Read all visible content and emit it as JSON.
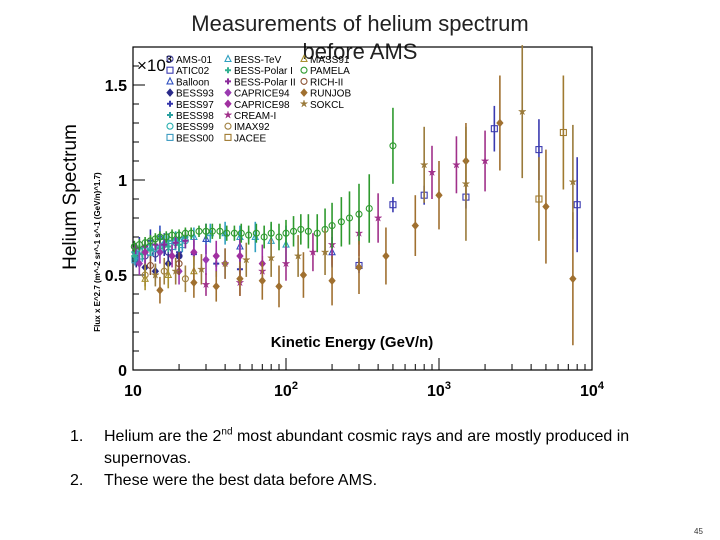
{
  "slide": {
    "title_line1": "Measurements of helium spectrum",
    "title_line2": "before AMS",
    "side_label": "Helium Spectrum",
    "bullets": [
      {
        "num": "1.",
        "pre": "Helium are the 2",
        "sup": "nd",
        "post": " most abundant cosmic rays and are mostly produced in supernovas."
      },
      {
        "num": "2.",
        "pre": "These were the best data before AMS.",
        "sup": "",
        "post": ""
      }
    ],
    "page_number": "45"
  },
  "chart_data": {
    "type": "scatter",
    "x_scale": "log",
    "xlim": [
      10,
      10000
    ],
    "ylim": [
      0,
      1700
    ],
    "x_ticks": [
      {
        "value": 10,
        "base": "10",
        "exp": ""
      },
      {
        "value": 100,
        "base": "10",
        "exp": "2"
      },
      {
        "value": 1000,
        "base": "10",
        "exp": "3"
      },
      {
        "value": 10000,
        "base": "10",
        "exp": "4"
      }
    ],
    "y_ticks": [
      {
        "value": 0,
        "label": "0"
      },
      {
        "value": 500,
        "label": "0.5"
      },
      {
        "value": 1000,
        "label": "1"
      },
      {
        "value": 1500,
        "label": "1.5"
      }
    ],
    "y_multiplier": {
      "base": "×10",
      "exp": "3"
    },
    "ylabel": "Flux x E^2.7 (m^-2 sr^-1 s^-1 (GeV/n)^1.7)",
    "xlabel": "Kinetic Energy (GeV/n)",
    "grid": false,
    "legend_position": "top-left",
    "series": [
      {
        "name": "AMS-01",
        "color": "#3a3a9a",
        "marker": "circle",
        "points": [
          [
            10.5,
            610,
            40
          ],
          [
            12,
            600,
            40
          ],
          [
            14,
            610,
            40
          ],
          [
            17,
            620,
            40
          ],
          [
            20,
            600,
            40
          ]
        ]
      },
      {
        "name": "ATIC02",
        "color": "#3a3ab0",
        "marker": "square",
        "points": [
          [
            300,
            550,
            40
          ],
          [
            500,
            870,
            40
          ],
          [
            800,
            920,
            50
          ],
          [
            1500,
            910,
            60
          ],
          [
            2300,
            1270,
            120
          ],
          [
            4500,
            1160,
            160
          ],
          [
            8000,
            870,
            250
          ]
        ]
      },
      {
        "name": "Balloon",
        "color": "#3050c0",
        "marker": "triangle",
        "points": [
          [
            15,
            700,
            60
          ],
          [
            30,
            690,
            80
          ],
          [
            50,
            650,
            80
          ],
          [
            200,
            620,
            80
          ]
        ]
      },
      {
        "name": "BESS93",
        "color": "#2a2a8a",
        "marker": "diamond",
        "points": [
          [
            10.5,
            580,
            40
          ],
          [
            12,
            540,
            40
          ],
          [
            14,
            520,
            40
          ],
          [
            17,
            560,
            50
          ],
          [
            20,
            600,
            50
          ]
        ]
      },
      {
        "name": "BESS97",
        "color": "#3333aa",
        "marker": "cross",
        "points": [
          [
            11,
            640,
            60
          ],
          [
            13,
            680,
            60
          ],
          [
            16,
            660,
            60
          ],
          [
            20,
            620,
            60
          ],
          [
            25,
            610,
            70
          ],
          [
            35,
            560,
            70
          ],
          [
            50,
            530,
            80
          ]
        ]
      },
      {
        "name": "BESS98",
        "color": "#2aa0a0",
        "marker": "cross",
        "points": [
          [
            10.2,
            620,
            30
          ],
          [
            11,
            640,
            30
          ],
          [
            12,
            650,
            30
          ],
          [
            13,
            660,
            30
          ],
          [
            15,
            690,
            30
          ],
          [
            17,
            680,
            40
          ],
          [
            19,
            690,
            40
          ],
          [
            22,
            700,
            40
          ]
        ]
      },
      {
        "name": "BESS99",
        "color": "#2ab0b0",
        "marker": "circle",
        "points": [
          [
            10.5,
            600,
            30
          ],
          [
            12,
            630,
            30
          ],
          [
            14,
            650,
            30
          ],
          [
            16,
            660,
            30
          ],
          [
            19,
            670,
            40
          ],
          [
            22,
            680,
            40
          ]
        ]
      },
      {
        "name": "BESS00",
        "color": "#3a9ac0",
        "marker": "square",
        "points": [
          [
            10.3,
            580,
            30
          ],
          [
            11.5,
            600,
            30
          ],
          [
            13,
            620,
            30
          ],
          [
            15,
            640,
            30
          ],
          [
            18,
            650,
            40
          ],
          [
            21,
            660,
            40
          ]
        ]
      },
      {
        "name": "BESS-TeV",
        "color": "#30a0c0",
        "marker": "triangle",
        "points": [
          [
            10.5,
            620,
            40
          ],
          [
            13,
            640,
            40
          ],
          [
            16,
            670,
            40
          ],
          [
            20,
            690,
            40
          ],
          [
            25,
            700,
            50
          ],
          [
            32,
            720,
            50
          ],
          [
            40,
            720,
            60
          ],
          [
            50,
            700,
            60
          ],
          [
            63,
            700,
            80
          ],
          [
            80,
            680,
            90
          ],
          [
            100,
            660,
            100
          ]
        ]
      },
      {
        "name": "BESS-Polar I",
        "color": "#30b090",
        "marker": "cross",
        "points": [
          [
            10.2,
            600,
            30
          ],
          [
            11.5,
            610,
            30
          ],
          [
            13,
            630,
            30
          ],
          [
            15,
            640,
            30
          ],
          [
            17,
            650,
            30
          ],
          [
            20,
            660,
            40
          ]
        ]
      },
      {
        "name": "BESS-Polar II",
        "color": "#8a2a9a",
        "marker": "cross",
        "points": [
          [
            10.4,
            640,
            30
          ],
          [
            12,
            650,
            30
          ],
          [
            14,
            660,
            30
          ],
          [
            16,
            660,
            30
          ],
          [
            19,
            670,
            30
          ],
          [
            22,
            680,
            40
          ]
        ]
      },
      {
        "name": "CAPRICE94",
        "color": "#9a3ab0",
        "marker": "diamond",
        "points": [
          [
            11,
            560,
            60
          ],
          [
            15,
            620,
            60
          ],
          [
            20,
            520,
            70
          ],
          [
            30,
            580,
            80
          ],
          [
            40,
            560,
            80
          ]
        ]
      },
      {
        "name": "CAPRICE98",
        "color": "#a030a0",
        "marker": "diamond",
        "points": [
          [
            12,
            620,
            60
          ],
          [
            18,
            600,
            60
          ],
          [
            25,
            620,
            70
          ],
          [
            35,
            600,
            80
          ],
          [
            50,
            600,
            90
          ],
          [
            70,
            560,
            100
          ]
        ]
      },
      {
        "name": "CREAM-I",
        "color": "#a0308a",
        "marker": "star",
        "points": [
          [
            30,
            450,
            60
          ],
          [
            50,
            460,
            70
          ],
          [
            70,
            520,
            80
          ],
          [
            100,
            560,
            90
          ],
          [
            150,
            620,
            100
          ],
          [
            200,
            660,
            110
          ],
          [
            300,
            720,
            120
          ],
          [
            400,
            800,
            130
          ],
          [
            900,
            1040,
            140
          ],
          [
            1300,
            1080,
            150
          ],
          [
            2000,
            1100,
            160
          ]
        ]
      },
      {
        "name": "IMAX92",
        "color": "#a08040",
        "marker": "circle",
        "points": [
          [
            12,
            500,
            60
          ],
          [
            16,
            520,
            70
          ],
          [
            22,
            480,
            70
          ]
        ]
      },
      {
        "name": "JACEE",
        "color": "#a07a30",
        "marker": "square",
        "points": [
          [
            4500,
            900,
            220
          ],
          [
            6500,
            1250,
            300
          ]
        ]
      },
      {
        "name": "MASS91",
        "color": "#a89030",
        "marker": "triangle",
        "points": [
          [
            12,
            480,
            60
          ],
          [
            17,
            500,
            70
          ],
          [
            25,
            520,
            80
          ]
        ]
      },
      {
        "name": "PAMELA",
        "color": "#2e9a2e",
        "marker": "circle",
        "points": [
          [
            10.2,
            650,
            30
          ],
          [
            11,
            660,
            30
          ],
          [
            12,
            670,
            30
          ],
          [
            13,
            680,
            30
          ],
          [
            14,
            690,
            30
          ],
          [
            15,
            700,
            30
          ],
          [
            16.5,
            700,
            30
          ],
          [
            18,
            710,
            30
          ],
          [
            20,
            710,
            30
          ],
          [
            22,
            720,
            30
          ],
          [
            24,
            720,
            30
          ],
          [
            27,
            730,
            30
          ],
          [
            30,
            730,
            40
          ],
          [
            33,
            730,
            40
          ],
          [
            37,
            730,
            40
          ],
          [
            41,
            720,
            40
          ],
          [
            46,
            720,
            40
          ],
          [
            51,
            720,
            50
          ],
          [
            57,
            710,
            50
          ],
          [
            64,
            720,
            50
          ],
          [
            72,
            700,
            60
          ],
          [
            80,
            720,
            60
          ],
          [
            90,
            700,
            70
          ],
          [
            100,
            720,
            70
          ],
          [
            112,
            730,
            80
          ],
          [
            125,
            740,
            80
          ],
          [
            140,
            730,
            90
          ],
          [
            160,
            720,
            100
          ],
          [
            180,
            740,
            110
          ],
          [
            200,
            760,
            120
          ],
          [
            230,
            780,
            130
          ],
          [
            260,
            800,
            140
          ],
          [
            300,
            820,
            160
          ],
          [
            350,
            850,
            180
          ],
          [
            500,
            1180,
            200
          ]
        ]
      },
      {
        "name": "RICH-II",
        "color": "#8a5030",
        "marker": "circle",
        "points": [
          [
            13,
            550,
            50
          ],
          [
            20,
            560,
            60
          ]
        ]
      },
      {
        "name": "RUNJOB",
        "color": "#a07030",
        "marker": "diamond",
        "points": [
          [
            15,
            420,
            70
          ],
          [
            25,
            460,
            80
          ],
          [
            35,
            440,
            80
          ],
          [
            50,
            480,
            90
          ],
          [
            70,
            470,
            100
          ],
          [
            90,
            440,
            110
          ],
          [
            130,
            500,
            120
          ],
          [
            200,
            470,
            130
          ],
          [
            300,
            540,
            140
          ],
          [
            450,
            600,
            150
          ],
          [
            700,
            760,
            160
          ],
          [
            1000,
            920,
            180
          ],
          [
            1500,
            1100,
            200
          ],
          [
            2500,
            1300,
            250
          ],
          [
            5000,
            860,
            300
          ],
          [
            7500,
            480,
            350
          ]
        ]
      },
      {
        "name": "SOKCL",
        "color": "#9a7a3a",
        "marker": "star",
        "points": [
          [
            14,
            500,
            60
          ],
          [
            19,
            520,
            70
          ],
          [
            28,
            530,
            80
          ],
          [
            40,
            560,
            80
          ],
          [
            55,
            580,
            90
          ],
          [
            80,
            590,
            100
          ],
          [
            120,
            600,
            110
          ],
          [
            180,
            620,
            120
          ],
          [
            800,
            1080,
            200
          ],
          [
            1500,
            980,
            300
          ],
          [
            3500,
            1360,
            350
          ],
          [
            7500,
            990,
            300
          ]
        ]
      }
    ]
  }
}
